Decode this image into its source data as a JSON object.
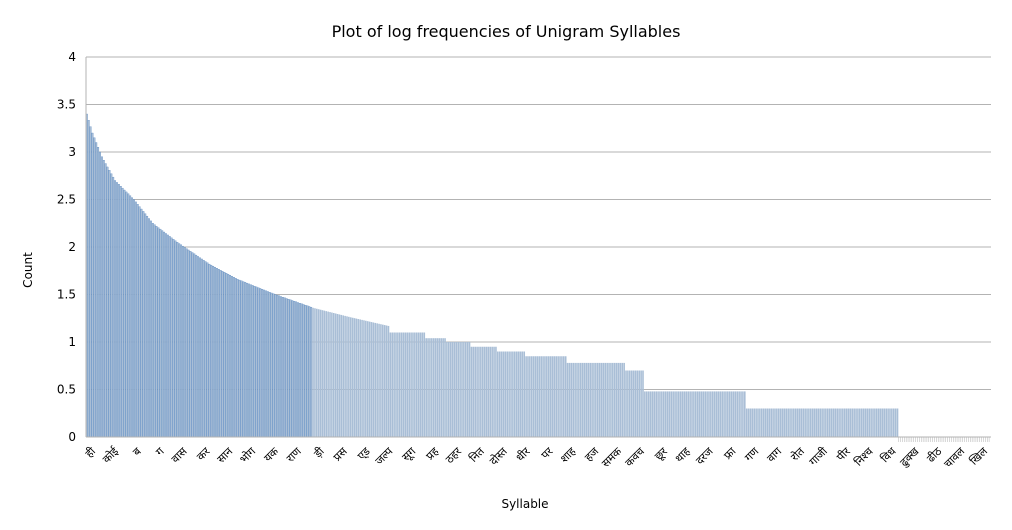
{
  "chart_data": {
    "type": "bar",
    "title": "Plot of log frequencies of Unigram Syllables",
    "xlabel": "Syllable",
    "ylabel": "Count",
    "ylim": [
      0,
      4
    ],
    "yticks": [
      "0",
      "0.5",
      "1",
      "1.5",
      "2",
      "2.5",
      "3",
      "3.5",
      "4"
    ],
    "grid": true,
    "bar_color": "#a9bed6",
    "bar_edge_color": "#4f81bd",
    "num_bars": 480,
    "shown_labels": [
      "ही",
      "कोई",
      "ब",
      "ग",
      "वास",
      "कर",
      "सान",
      "भोग",
      "यक",
      "राण",
      "ड़ी",
      "प्रस",
      "ए्ड",
      "जल्प",
      "सूग",
      "प्रह",
      "ठहर",
      "नित",
      "दोस्त",
      "धीर",
      "पर",
      "शाह",
      "हज",
      "समक",
      "कवच",
      "छूर",
      "थाह",
      "दरज",
      "फ्रा",
      "गण",
      "वाग",
      "रोत",
      "गाजी",
      "पीर",
      "निश्च",
      "विध",
      "ढुक्ख",
      "ढीठ",
      "चावल",
      "खिल"
    ],
    "profile": {
      "description": "sorted descending log10 frequency per syllable, read at selected bar indices",
      "index": [
        0,
        3,
        8,
        15,
        25,
        35,
        48,
        65,
        80,
        100,
        120,
        140,
        162,
        185,
        210,
        240,
        270,
        300,
        320,
        335,
        345,
        349,
        350,
        375,
        400,
        479
      ],
      "value": [
        3.4,
        3.2,
        2.95,
        2.7,
        2.5,
        2.25,
        2.05,
        1.82,
        1.66,
        1.5,
        1.36,
        1.26,
        1.16,
        1.04,
        0.95,
        0.85,
        0.78,
        0.7,
        0.6,
        0.48,
        0.48,
        0.48,
        0.3,
        0.3,
        0.3,
        0.0
      ]
    }
  }
}
